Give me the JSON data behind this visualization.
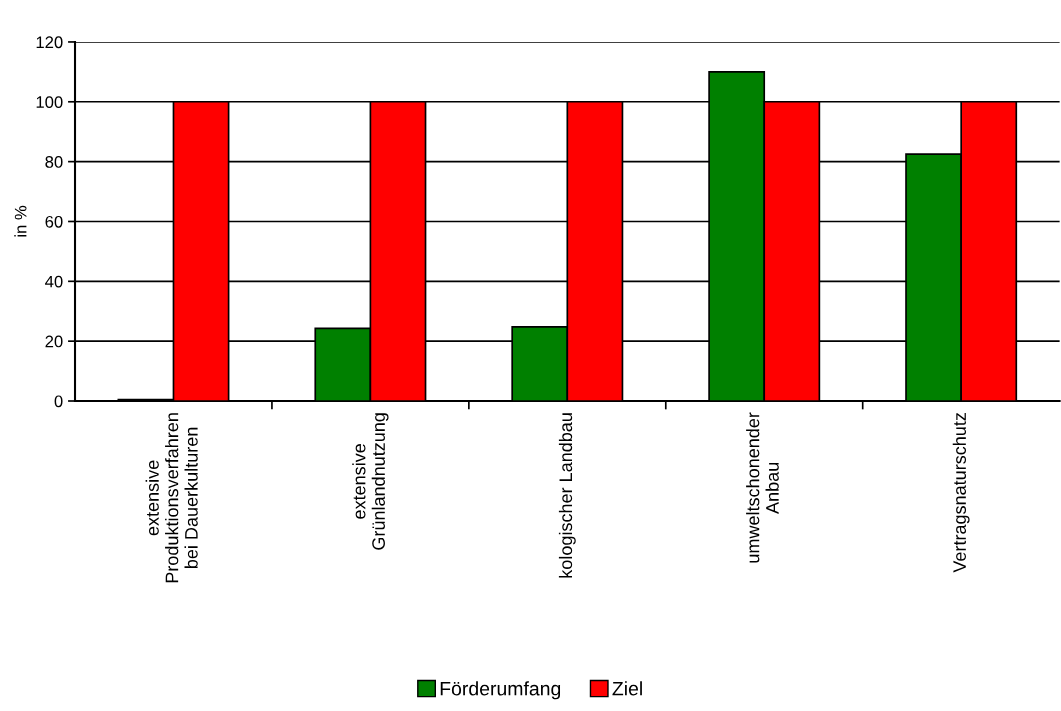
{
  "chart_data": {
    "type": "bar",
    "ylabel": "in %",
    "categories": [
      "extensive\nProduktionsverfahren\nbei Dauerkulturen",
      "extensive\nGrünlandnutzung",
      "kologischer Landbau",
      "umweltschonender\nAnbau",
      "Vertragsnaturschutz"
    ],
    "series": [
      {
        "name": "Förderumfang",
        "color": "#008000",
        "values": [
          0.5,
          24.3,
          24.8,
          110,
          82.5
        ]
      },
      {
        "name": "Ziel",
        "color": "#ff0000",
        "values": [
          100,
          100,
          100,
          100,
          100
        ]
      }
    ],
    "ylim": [
      0,
      120
    ],
    "yticks": [
      0,
      20,
      40,
      60,
      80,
      100,
      120
    ],
    "grid": "y",
    "legend": "bottom"
  }
}
